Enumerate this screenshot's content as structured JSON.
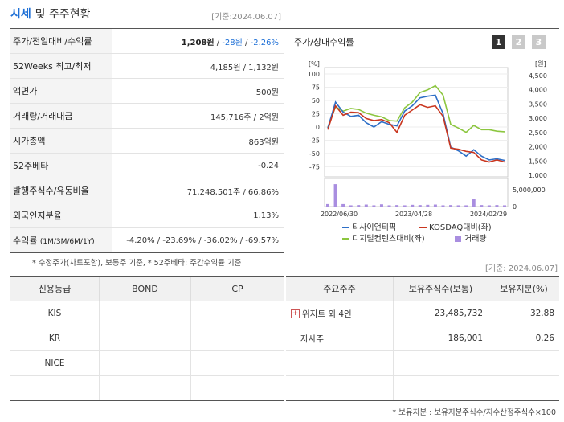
{
  "header": {
    "title_part1": "시세",
    "title_part2": "및 주주현황",
    "date": "[기준:2024.06.07]"
  },
  "market": {
    "rows": [
      {
        "label": "주가/전일대비/수익률",
        "value_main": "1,208원",
        "value_sep": " / ",
        "value_neg1": "-28원",
        "value_sep2": " / ",
        "value_neg2": "-2.26%"
      },
      {
        "label": "52Weeks 최고/최저",
        "value": "4,185원 / 1,132원"
      },
      {
        "label": "액면가",
        "value": "500원"
      },
      {
        "label": "거래량/거래대금",
        "value": "145,716주 / 2억원"
      },
      {
        "label": "시가총액",
        "value": "863억원"
      },
      {
        "label": "52주베타",
        "value": "-0.24"
      },
      {
        "label": "발행주식수/유동비율",
        "value": "71,248,501주 / 66.86%"
      },
      {
        "label": "외국인지분율",
        "value": "1.13%"
      },
      {
        "label": "수익률",
        "label_sub": "(1M/3M/6M/1Y)",
        "value": "-4.20% / -23.69% / -36.02% / -69.57%"
      }
    ],
    "footnote": "* 수정주가(차트포함), 보통주 기준, * 52주베타: 주간수익률 기준"
  },
  "chart_panel": {
    "title": "주가/상대수익률",
    "buttons": [
      "1",
      "2",
      "3"
    ],
    "left_unit": "[%]",
    "right_unit": "[원]",
    "volume_tick": "5,000,000",
    "volume_zero": "0",
    "legend": [
      "티사이언티픽",
      "KOSDAQ대비(좌)",
      "디지털컨텐츠대비(좌)",
      "거래량"
    ],
    "colors": {
      "stock": "#2e6fc7",
      "kosdaq": "#c9361f",
      "digital": "#8cc63f",
      "volume": "#a98ee0"
    }
  },
  "chart_data": {
    "type": "line",
    "x_ticks": [
      "2022/06/30",
      "2023/04/28",
      "2024/02/29"
    ],
    "left_axis": {
      "ticks": [
        100,
        75,
        50,
        25,
        0,
        -25,
        -50,
        -75
      ],
      "ylim": [
        -88,
        100
      ]
    },
    "right_axis": {
      "ticks": [
        "4,500",
        "4,000",
        "3,500",
        "3,000",
        "2,500",
        "2,000",
        "1,500",
        "1,000"
      ],
      "ylim": [
        640,
        4500
      ]
    },
    "series": [
      {
        "name": "티사이언티픽",
        "values": [
          -2,
          47,
          28,
          20,
          22,
          8,
          0,
          10,
          5,
          2,
          30,
          40,
          55,
          58,
          60,
          25,
          -38,
          -45,
          -55,
          -43,
          -55,
          -62,
          -60,
          -63
        ]
      },
      {
        "name": "KOSDAQ대비(좌)",
        "values": [
          -5,
          40,
          22,
          28,
          27,
          16,
          12,
          14,
          8,
          -10,
          22,
          32,
          42,
          37,
          40,
          20,
          -40,
          -42,
          -46,
          -48,
          -62,
          -66,
          -62,
          -66
        ]
      },
      {
        "name": "디지털컨텐츠대비(좌)",
        "values": [
          -1,
          38,
          30,
          35,
          33,
          26,
          22,
          19,
          12,
          11,
          36,
          47,
          65,
          70,
          78,
          60,
          5,
          -2,
          -10,
          3,
          -5,
          -5,
          -8,
          -9
        ]
      }
    ],
    "volume": [
      1,
      9,
      1,
      0.5,
      0.6,
      0.8,
      0.5,
      0.9,
      0.5,
      0.6,
      0.5,
      0.7,
      0.6,
      0.7,
      0.8,
      0.5,
      0.6,
      0.5,
      0.5,
      3.2,
      0.6,
      0.5,
      0.6,
      0.5
    ],
    "volume_ylim": [
      0,
      10
    ]
  },
  "credit": {
    "headers": [
      "신용등급",
      "BOND",
      "CP"
    ],
    "rows": [
      [
        "KIS",
        "",
        ""
      ],
      [
        "KR",
        "",
        ""
      ],
      [
        "NICE",
        "",
        ""
      ],
      [
        "",
        "",
        ""
      ]
    ]
  },
  "shareholders": {
    "date": "[기준: 2024.06.07]",
    "headers": [
      "주요주주",
      "보유주식수(보통)",
      "보유지분(%)"
    ],
    "rows": [
      {
        "name": "위지트 외 4인",
        "shares": "23,485,732",
        "pct": "32.88",
        "expand": "+"
      },
      {
        "name": "자사주",
        "shares": "186,001",
        "pct": "0.26",
        "expand": ""
      },
      {
        "name": "",
        "shares": "",
        "pct": "",
        "expand": ""
      },
      {
        "name": "",
        "shares": "",
        "pct": "",
        "expand": ""
      }
    ],
    "footnote": "* 보유지분 : 보유지분주식수/지수산정주식수×100"
  }
}
